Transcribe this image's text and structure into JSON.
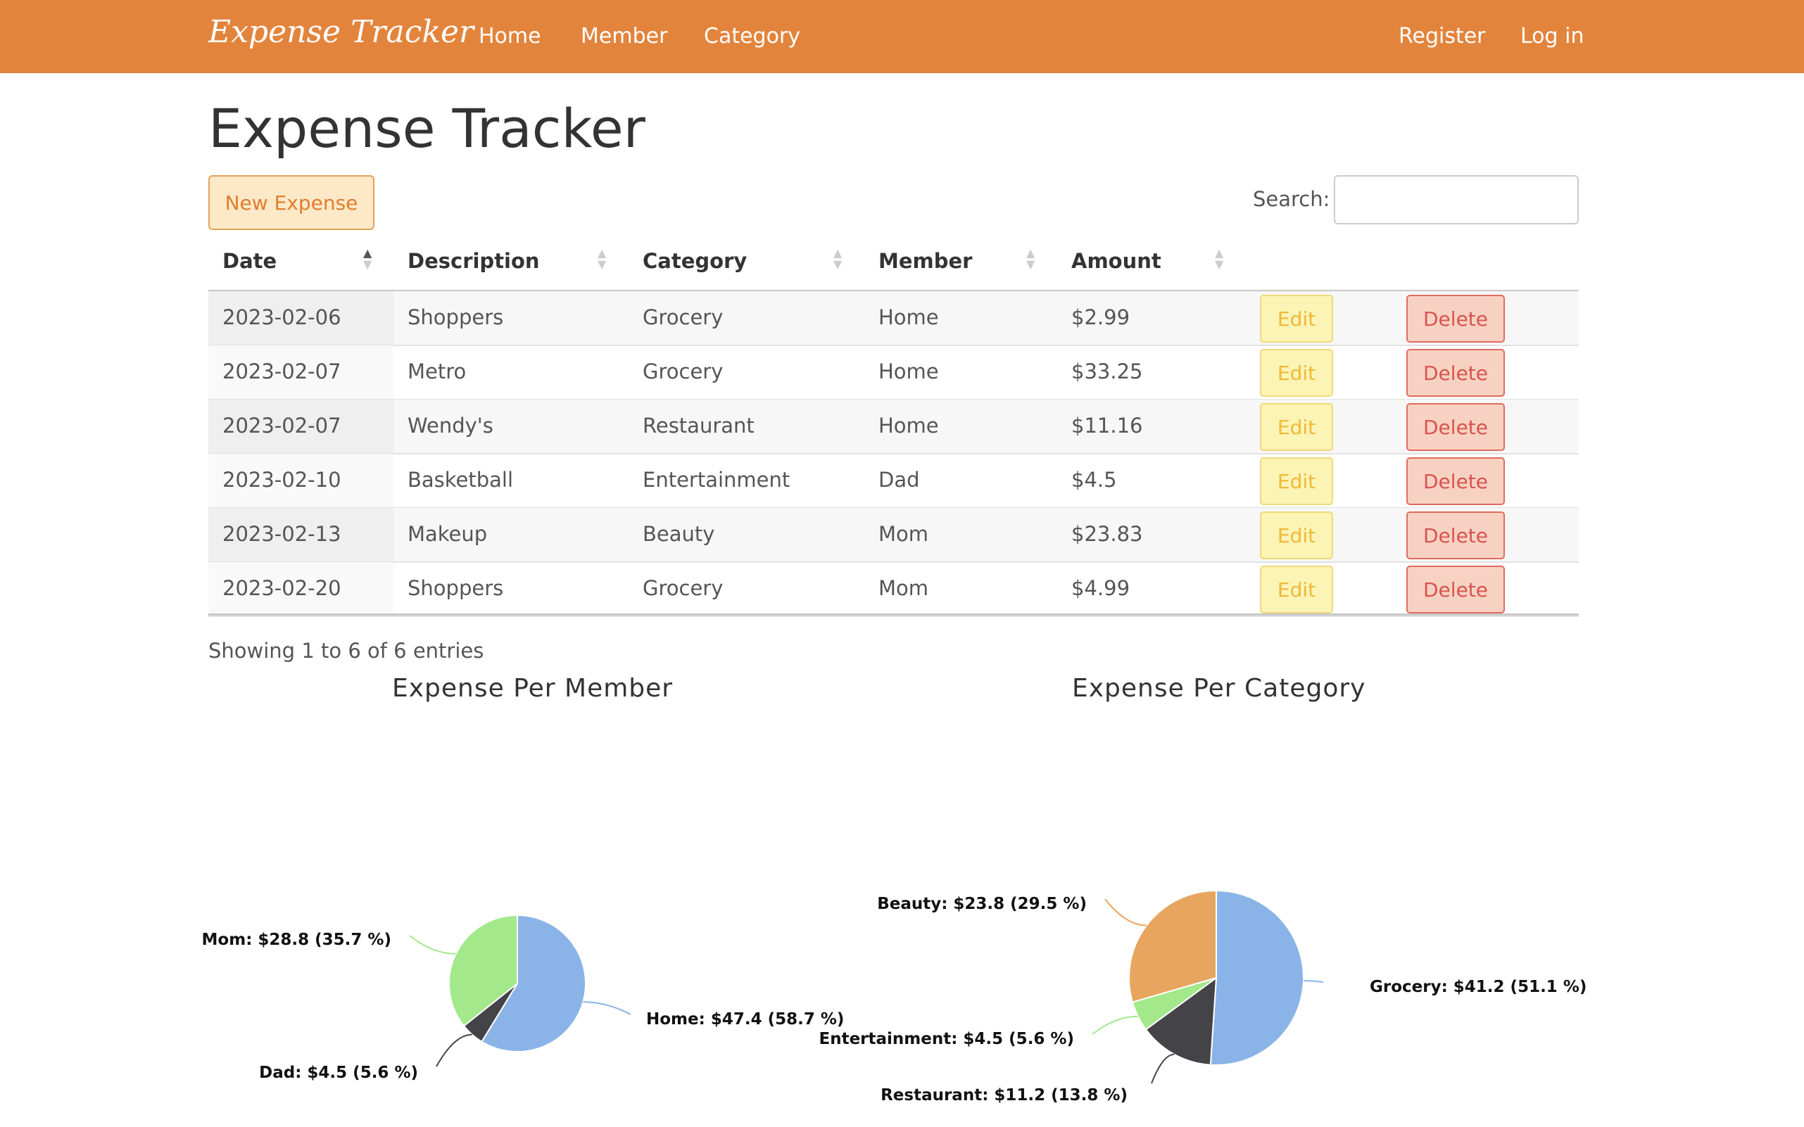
{
  "navbar": {
    "brand": "Expense Tracker",
    "links": [
      "Home",
      "Member",
      "Category"
    ],
    "register": "Register",
    "login": "Log in",
    "color": "#e3843c"
  },
  "page_title": "Expense Tracker",
  "new_expense_label": "New Expense",
  "search": {
    "label": "Search:",
    "value": ""
  },
  "table": {
    "columns": [
      "Date",
      "Description",
      "Category",
      "Member",
      "Amount"
    ],
    "sorted_column": "Date",
    "rows": [
      {
        "date": "2023-02-06",
        "description": "Shoppers",
        "category": "Grocery",
        "member": "Home",
        "amount": "$2.99"
      },
      {
        "date": "2023-02-07",
        "description": "Metro",
        "category": "Grocery",
        "member": "Home",
        "amount": "$33.25"
      },
      {
        "date": "2023-02-07",
        "description": "Wendy's",
        "category": "Restaurant",
        "member": "Home",
        "amount": "$11.16"
      },
      {
        "date": "2023-02-10",
        "description": "Basketball",
        "category": "Entertainment",
        "member": "Dad",
        "amount": "$4.5"
      },
      {
        "date": "2023-02-13",
        "description": "Makeup",
        "category": "Beauty",
        "member": "Mom",
        "amount": "$23.83"
      },
      {
        "date": "2023-02-20",
        "description": "Shoppers",
        "category": "Grocery",
        "member": "Mom",
        "amount": "$4.99"
      }
    ],
    "edit_label": "Edit",
    "delete_label": "Delete"
  },
  "info_text": "Showing 1 to 6 of 6 entries",
  "chart_data": [
    {
      "type": "pie",
      "title": "Expense Per Member",
      "categories": [
        "Home",
        "Dad",
        "Mom"
      ],
      "values": [
        47.4,
        4.5,
        28.8
      ],
      "labels": [
        "Home: $47.4 (58.7 %)",
        "Dad: $4.5 (5.6 %)",
        "Mom: $28.8 (35.7 %)"
      ],
      "colors": [
        "#8ab4e8",
        "#434348",
        "#a3e88a"
      ]
    },
    {
      "type": "pie",
      "title": "Expense Per Category",
      "categories": [
        "Grocery",
        "Restaurant",
        "Entertainment",
        "Beauty"
      ],
      "values": [
        41.2,
        11.2,
        4.5,
        23.8
      ],
      "labels": [
        "Grocery: $41.2 (51.1 %)",
        "Restaurant: $11.2 (13.8 %)",
        "Entertainment: $4.5 (5.6 %)",
        "Beauty: $23.8 (29.5 %)"
      ],
      "colors": [
        "#8ab4e8",
        "#434348",
        "#a3e88a",
        "#e8a560"
      ]
    }
  ]
}
